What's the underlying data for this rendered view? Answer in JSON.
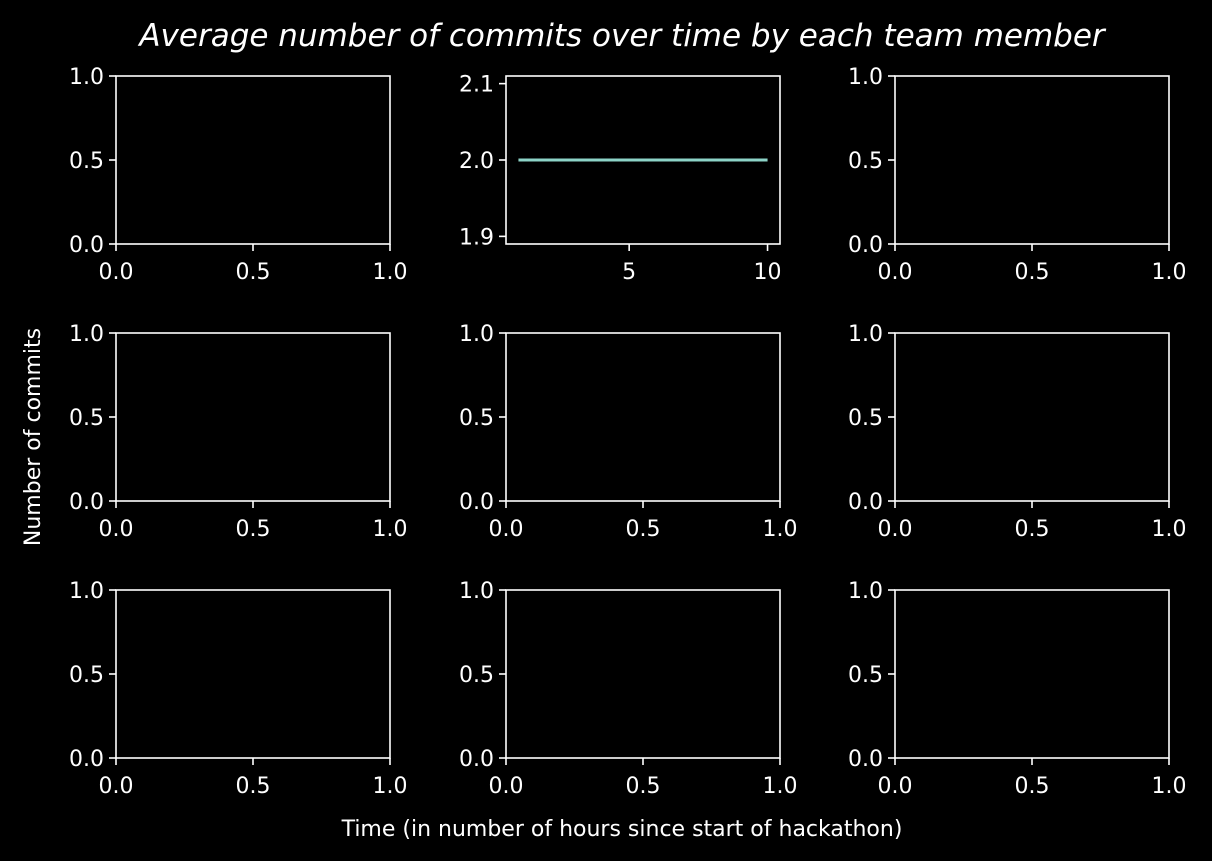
{
  "colors": {
    "background": "#000000",
    "foreground": "#ffffff",
    "series": "#8dd3c7"
  },
  "chart_data": {
    "type": "line",
    "title": "Average number of commits over time by each team member",
    "xlabel": "Time (in number of hours since start of hackathon)",
    "ylabel": "Number of commits",
    "grid": false,
    "legend": "none",
    "layout": {
      "rows": 3,
      "cols": 3
    },
    "subplots": [
      {
        "xlim": [
          0,
          1
        ],
        "ylim": [
          0,
          1
        ],
        "xticks": [
          "0.0",
          "0.5",
          "1.0"
        ],
        "yticks": [
          "0.0",
          "0.5",
          "1.0"
        ],
        "series": []
      },
      {
        "xlim": [
          0.55,
          10.45
        ],
        "ylim": [
          1.89,
          2.11
        ],
        "xticks": [
          "5",
          "10"
        ],
        "yticks": [
          "1.9",
          "2.0",
          "2.1"
        ],
        "series": [
          {
            "x": [
              1,
              10
            ],
            "y": [
              2.0,
              2.0
            ]
          }
        ]
      },
      {
        "xlim": [
          0,
          1
        ],
        "ylim": [
          0,
          1
        ],
        "xticks": [
          "0.0",
          "0.5",
          "1.0"
        ],
        "yticks": [
          "0.0",
          "0.5",
          "1.0"
        ],
        "series": []
      },
      {
        "xlim": [
          0,
          1
        ],
        "ylim": [
          0,
          1
        ],
        "xticks": [
          "0.0",
          "0.5",
          "1.0"
        ],
        "yticks": [
          "0.0",
          "0.5",
          "1.0"
        ],
        "series": []
      },
      {
        "xlim": [
          0,
          1
        ],
        "ylim": [
          0,
          1
        ],
        "xticks": [
          "0.0",
          "0.5",
          "1.0"
        ],
        "yticks": [
          "0.0",
          "0.5",
          "1.0"
        ],
        "series": []
      },
      {
        "xlim": [
          0,
          1
        ],
        "ylim": [
          0,
          1
        ],
        "xticks": [
          "0.0",
          "0.5",
          "1.0"
        ],
        "yticks": [
          "0.0",
          "0.5",
          "1.0"
        ],
        "series": []
      },
      {
        "xlim": [
          0,
          1
        ],
        "ylim": [
          0,
          1
        ],
        "xticks": [
          "0.0",
          "0.5",
          "1.0"
        ],
        "yticks": [
          "0.0",
          "0.5",
          "1.0"
        ],
        "series": []
      },
      {
        "xlim": [
          0,
          1
        ],
        "ylim": [
          0,
          1
        ],
        "xticks": [
          "0.0",
          "0.5",
          "1.0"
        ],
        "yticks": [
          "0.0",
          "0.5",
          "1.0"
        ],
        "series": []
      },
      {
        "xlim": [
          0,
          1
        ],
        "ylim": [
          0,
          1
        ],
        "xticks": [
          "0.0",
          "0.5",
          "1.0"
        ],
        "yticks": [
          "0.0",
          "0.5",
          "1.0"
        ],
        "series": []
      }
    ]
  }
}
